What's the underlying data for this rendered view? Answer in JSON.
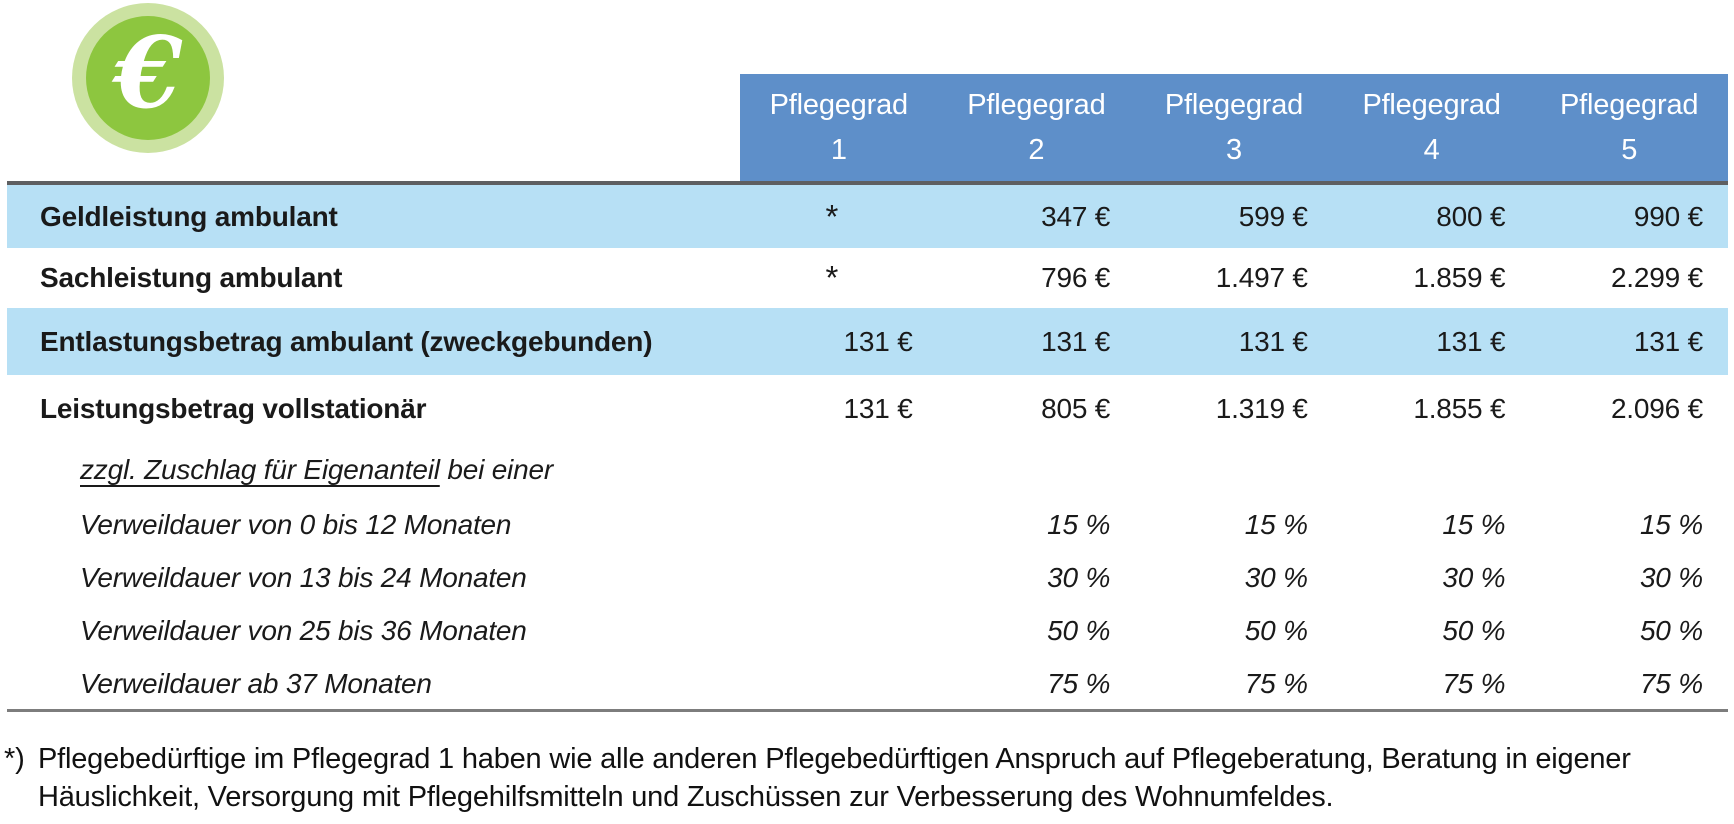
{
  "colors": {
    "header_blue": "#5e8fc9",
    "row_blue": "#b7e0f5",
    "icon_green": "#8dc63f",
    "icon_ring": "#cbe2a1",
    "text_dark": "#1a1a1a",
    "line_dark": "#5e5f61",
    "line_gray": "#7d7d7d"
  },
  "icon": {
    "glyph": "€"
  },
  "header": {
    "columns": [
      {
        "title": "Pflegegrad",
        "grade": "1"
      },
      {
        "title": "Pflegegrad",
        "grade": "2"
      },
      {
        "title": "Pflegegrad",
        "grade": "3"
      },
      {
        "title": "Pflegegrad",
        "grade": "4"
      },
      {
        "title": "Pflegegrad",
        "grade": "5"
      }
    ]
  },
  "table": {
    "rows": [
      {
        "label": "Geldleistung ambulant",
        "values": [
          "*",
          "347 €",
          "599 €",
          "800 €",
          "990 €"
        ]
      },
      {
        "label": "Sachleistung ambulant",
        "values": [
          "*",
          "796 €",
          "1.497 €",
          "1.859 €",
          "2.299 €"
        ]
      },
      {
        "label": "Entlastungsbetrag ambulant (zweckgebunden)",
        "values": [
          "131 €",
          "131 €",
          "131 €",
          "131 €",
          "131 €"
        ]
      },
      {
        "label": "Leistungsbetrag vollstationär",
        "values": [
          "131 €",
          "805 €",
          "1.319 €",
          "1.855 €",
          "2.096 €"
        ]
      },
      {
        "label_underlined": "zzgl. Zuschlag für Eigenanteil",
        "label_rest": " bei einer",
        "values": [
          "",
          "",
          "",
          "",
          ""
        ]
      },
      {
        "label": "Verweildauer von 0 bis 12 Monaten",
        "values": [
          "",
          "15 %",
          "15 %",
          "15 %",
          "15 %"
        ]
      },
      {
        "label": "Verweildauer von 13 bis 24 Monaten",
        "values": [
          "",
          "30 %",
          "30 %",
          "30 %",
          "30 %"
        ]
      },
      {
        "label": "Verweildauer von 25 bis 36 Monaten",
        "values": [
          "",
          "50 %",
          "50 %",
          "50 %",
          "50 %"
        ]
      },
      {
        "label": "Verweildauer ab 37 Monaten",
        "values": [
          "",
          "75 %",
          "75 %",
          "75 %",
          "75 %"
        ]
      }
    ]
  },
  "footnote": {
    "marker": "*)",
    "line1": "Pflegebedürftige im Pflegegrad 1 haben wie alle anderen Pflegebedürftigen Anspruch auf Pflegeberatung, Beratung in eigener",
    "line2": "Häuslichkeit, Versorgung mit Pflegehilfsmitteln und Zuschüssen zur Verbesserung des Wohnumfeldes."
  }
}
